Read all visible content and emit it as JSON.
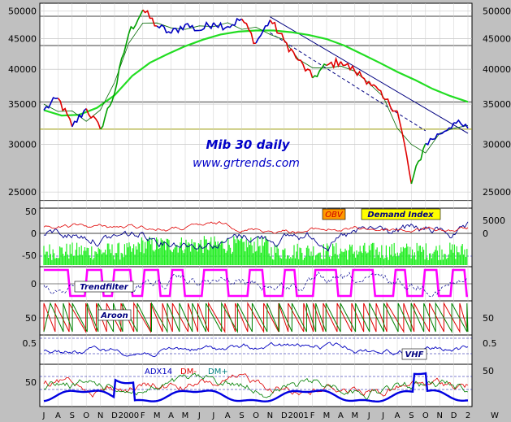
{
  "chart_data": {
    "type": "line",
    "title": "Mib 30 daily",
    "subtitle": "www.grtrends.com",
    "price_axis": {
      "ticks": [
        50000,
        45000,
        40000,
        35000,
        30000,
        25000
      ],
      "scale": "log",
      "ylim": [
        23500,
        51500
      ]
    },
    "x_months": [
      "J",
      "A",
      "S",
      "O",
      "N",
      "D",
      "2000",
      "F",
      "M",
      "A",
      "M",
      "J",
      "J",
      "A",
      "S",
      "O",
      "N",
      "D",
      "2001",
      "F",
      "M",
      "A",
      "M",
      "J",
      "J",
      "A",
      "S",
      "O",
      "N",
      "D",
      "2"
    ],
    "x_extra_label": "W",
    "price_monthly": {
      "values": [
        34200,
        35800,
        32100,
        34400,
        31800,
        36500,
        45800,
        50200,
        47200,
        45900,
        47500,
        46400,
        47800,
        47100,
        48500,
        44200,
        48300,
        44600,
        41400,
        38700,
        40600,
        41200,
        39700,
        38200,
        35800,
        34100,
        25800,
        30100,
        31200,
        32600,
        31900
      ],
      "color_flags": [
        "blue",
        "blue",
        "red",
        "blue",
        "red",
        "green",
        "green",
        "green",
        "red",
        "blue",
        "blue",
        "blue",
        "blue",
        "blue",
        "blue",
        "red",
        "blue",
        "red",
        "red",
        "red",
        "green",
        "red",
        "red",
        "red",
        "red",
        "red",
        "red",
        "green",
        "blue",
        "blue",
        "blue"
      ]
    },
    "moving_average_long": [
      34200,
      33500,
      33600,
      34500,
      36200,
      39000,
      41000,
      42400,
      43700,
      44800,
      45700,
      46200,
      46400,
      46400,
      46100,
      45600,
      44900,
      43800,
      42400,
      41000,
      39600,
      38400,
      37100,
      36100,
      35300
    ],
    "trendline_values": {
      "resistance_start": 48900,
      "resistance_end": 31300,
      "support_dashed_start": 46000,
      "support_dashed_end": 31600
    },
    "horizontal_levels": [
      49000,
      43800,
      35300,
      31800,
      24200
    ],
    "indicator_labels": {
      "obv": "OBV",
      "demand_index": "Demand Index",
      "trendfilter": "Trendfilter",
      "aroon": "Aroon",
      "vhf": "VHF",
      "adx": "ADX14",
      "dm_minus": "DM-",
      "dm_plus": "DM+"
    },
    "indicator_ticks": {
      "demand_left": [
        "50",
        "0",
        "-50"
      ],
      "demand_right": [
        "5000",
        "0"
      ],
      "trendfilter_left": [
        "0"
      ],
      "aroon_left": [
        "50"
      ],
      "aroon_right": [
        "50"
      ],
      "vhf_left": [
        "0.5"
      ],
      "vhf_right": [
        "0.5"
      ],
      "adx_left": [
        "50"
      ],
      "adx_right": [
        "50"
      ]
    },
    "colors": {
      "background": "#ffffff",
      "frame": "#c0c0c0",
      "up": "#00a000",
      "down": "#e00000",
      "neutral": "#0000c0",
      "ma_long": "#22dd22",
      "trendfilter": "#ff00ff",
      "volume": "#22ee22",
      "title": "#0000c8",
      "obv_box": "#ff9900",
      "label_box": "#ffff00"
    },
    "grid": true
  }
}
